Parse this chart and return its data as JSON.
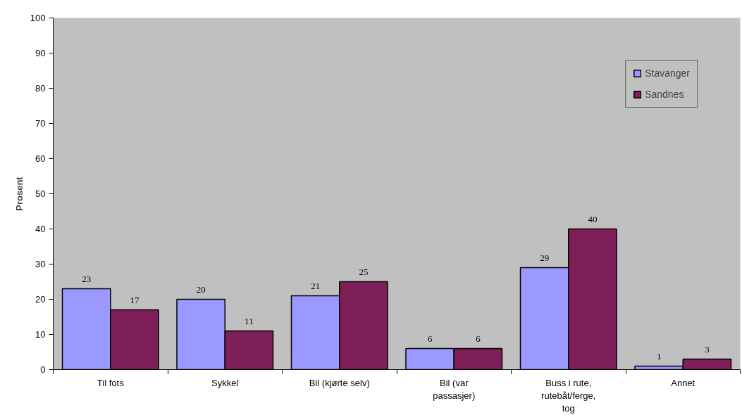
{
  "chart_data": {
    "type": "bar",
    "ylabel": "Prosent",
    "categories": [
      "Til fots",
      "Sykkel",
      "Bil (kjørte selv)",
      "Bil (var passasjer)",
      "Buss i rute, rutebåt/ferge, tog",
      "Annet"
    ],
    "series": [
      {
        "name": "Stavanger",
        "color": "#9999ff",
        "values": [
          23,
          20,
          21,
          6,
          29,
          1
        ]
      },
      {
        "name": "Sandnes",
        "color": "#7f1f5a",
        "values": [
          17,
          11,
          25,
          6,
          40,
          3
        ]
      }
    ],
    "ylim": [
      0,
      100
    ],
    "yticks": [
      0,
      10,
      20,
      30,
      40,
      50,
      60,
      70,
      80,
      90,
      100
    ],
    "data_labels": true,
    "grid": false,
    "legend": "top right"
  }
}
